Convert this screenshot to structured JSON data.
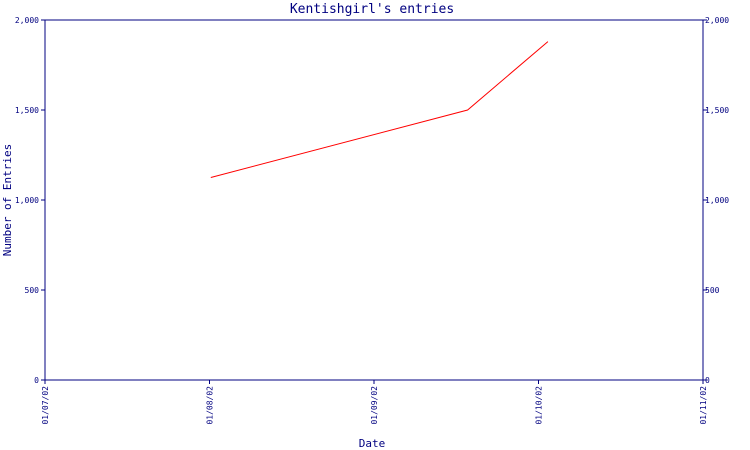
{
  "chart_data": {
    "type": "line",
    "title": "Kentishgirl's entries",
    "xlabel": "Date",
    "ylabel": "Number of Entries",
    "x_ticks": [
      "01/07/02",
      "01/08/02",
      "01/09/02",
      "01/10/02",
      "01/11/02"
    ],
    "y_ticks": [
      "0",
      "500",
      "1,000",
      "1,500",
      "2,000"
    ],
    "y_ticks_right": [
      "0",
      "500",
      "1,000",
      "1,500",
      "2,000"
    ],
    "xlim": [
      "2002-07-01",
      "2002-11-01"
    ],
    "ylim": [
      0,
      2000
    ],
    "grid": false,
    "series": [
      {
        "color": "#ff0000",
        "x": [
          "2002-08-01",
          "2002-09-18",
          "2002-10-03"
        ],
        "y": [
          1125,
          1500,
          1880
        ]
      }
    ]
  },
  "colors": {
    "axis": "#000080",
    "line": "#ff0000",
    "background": "#ffffff"
  }
}
